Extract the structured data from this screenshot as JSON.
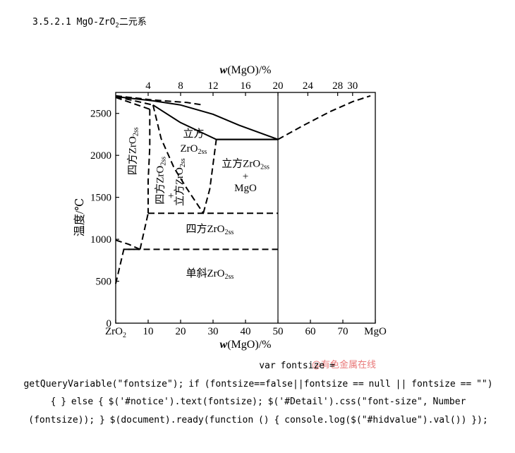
{
  "section": {
    "number": "3.5.2.1",
    "system_a": "MgO-ZrO",
    "system_sub": "2",
    "system_b": "二元系"
  },
  "chart_data": {
    "type": "phase-diagram",
    "title": "",
    "xlabel": "w(MgO)/%",
    "x2label": "w(MgO)/%",
    "ylabel": "温度/℃",
    "xlim": [
      0,
      80
    ],
    "ylim": [
      0,
      2750
    ],
    "x_ticks": [
      {
        "value": 0,
        "label": "ZrO2"
      },
      {
        "value": 10,
        "label": "10"
      },
      {
        "value": 20,
        "label": "20"
      },
      {
        "value": 30,
        "label": "30"
      },
      {
        "value": 40,
        "label": "40"
      },
      {
        "value": 50,
        "label": "50"
      },
      {
        "value": 60,
        "label": "60"
      },
      {
        "value": 70,
        "label": "70"
      },
      {
        "value": 80,
        "label": "MgO"
      }
    ],
    "x2_ticks": [
      {
        "value": 4,
        "label": "4"
      },
      {
        "value": 8,
        "label": "8"
      },
      {
        "value": 12,
        "label": "12"
      },
      {
        "value": 16,
        "label": "16"
      },
      {
        "value": 20,
        "label": "20"
      },
      {
        "value": 24,
        "label": "24"
      },
      {
        "value": 28,
        "label": "28"
      },
      {
        "value": 30,
        "label": "30"
      }
    ],
    "y_ticks": [
      0,
      500,
      1000,
      1500,
      2000,
      2500
    ],
    "grid": false,
    "boundaries": [
      {
        "name": "liquidus-solid",
        "style": "solid",
        "points": [
          [
            0,
            2700
          ],
          [
            11.5,
            2650
          ],
          [
            20,
            2600
          ],
          [
            30,
            2490
          ],
          [
            38,
            2360
          ],
          [
            50,
            2190
          ]
        ]
      },
      {
        "name": "cubic-ss-solvus-top",
        "style": "solid",
        "points": [
          [
            11.5,
            2600
          ],
          [
            20,
            2390
          ],
          [
            31,
            2190
          ],
          [
            50,
            2190
          ]
        ]
      },
      {
        "name": "eutectic-line",
        "style": "solid",
        "points": [
          [
            31,
            2190
          ],
          [
            50,
            2190
          ]
        ]
      },
      {
        "name": "mgo-liquidus",
        "style": "dashed",
        "points": [
          [
            50,
            2190
          ],
          [
            58,
            2360
          ],
          [
            66,
            2520
          ],
          [
            73,
            2640
          ],
          [
            78.5,
            2710
          ]
        ]
      },
      {
        "name": "zro2-liquidus-upper",
        "style": "dashed",
        "points": [
          [
            0,
            2710
          ],
          [
            11.5,
            2660
          ],
          [
            22,
            2630
          ],
          [
            27,
            2600
          ]
        ]
      },
      {
        "name": "zro2-solidus",
        "style": "dashed",
        "points": [
          [
            0,
            2700
          ],
          [
            11.5,
            2600
          ]
        ]
      },
      {
        "name": "tetragonal-cubic-lower",
        "style": "dashed",
        "points": [
          [
            0,
            2690
          ],
          [
            10.5,
            2550
          ]
        ]
      },
      {
        "name": "tetragonal-solvus",
        "style": "dashed",
        "points": [
          [
            10.5,
            2550
          ],
          [
            10.5,
            2100
          ],
          [
            10,
            1700
          ],
          [
            10,
            1310
          ]
        ]
      },
      {
        "name": "cubic-ss-left",
        "style": "dashed",
        "points": [
          [
            11.5,
            2600
          ],
          [
            14,
            2200
          ],
          [
            18,
            1850
          ],
          [
            22,
            1600
          ],
          [
            27,
            1310
          ]
        ]
      },
      {
        "name": "cubic-ss-right",
        "style": "dashed",
        "points": [
          [
            27,
            1310
          ],
          [
            29,
            1600
          ],
          [
            31,
            2190
          ]
        ]
      },
      {
        "name": "eutectoid-line",
        "style": "dashed",
        "points": [
          [
            10,
            1310
          ],
          [
            50,
            1310
          ]
        ]
      },
      {
        "name": "tetragonal-monoclinic-upper",
        "style": "dashed",
        "points": [
          [
            7.5,
            880
          ],
          [
            10,
            1310
          ]
        ]
      },
      {
        "name": "monoclinic-line",
        "style": "dashed",
        "points": [
          [
            2.5,
            880
          ],
          [
            50,
            880
          ]
        ]
      },
      {
        "name": "zro2-transition-upper",
        "style": "dashed",
        "points": [
          [
            0,
            990
          ],
          [
            4,
            940
          ],
          [
            7.5,
            880
          ]
        ]
      },
      {
        "name": "zro2-transition-lower",
        "style": "dashed",
        "points": [
          [
            0,
            470
          ],
          [
            2.5,
            880
          ],
          [
            7.5,
            880
          ]
        ]
      },
      {
        "name": "compound-50",
        "style": "solid",
        "points": [
          [
            50,
            0
          ],
          [
            50,
            2750
          ]
        ]
      }
    ],
    "annotations": [
      {
        "text": "四方ZrO2ss",
        "x": 5.5,
        "y": 2050,
        "rotate": -90
      },
      {
        "text": "立方",
        "x": 24,
        "y": 2250
      },
      {
        "text": "ZrO2ss",
        "x": 24,
        "y": 2070
      },
      {
        "text": "立方ZrO2ss",
        "x": 40,
        "y": 1890
      },
      {
        "text": "+",
        "x": 40,
        "y": 1740
      },
      {
        "text": "MgO",
        "x": 40,
        "y": 1600
      },
      {
        "text": "四方ZrO2ss",
        "x": 14,
        "y": 1700,
        "rotate": -90
      },
      {
        "text": "+",
        "x": 17,
        "y": 1510
      },
      {
        "text": "立方ZrO2ss",
        "x": 20,
        "y": 1680,
        "rotate": -90
      },
      {
        "text": "四方ZrO2ss",
        "x": 29,
        "y": 1110
      },
      {
        "text": "单斜ZrO2ss",
        "x": 29,
        "y": 580
      }
    ]
  },
  "watermark": "@有色金属在线",
  "code_lines": [
    "var fontsize =",
    "getQueryVariable(\"fontsize\"); if (fontsize==false||fontsize == null || fontsize == \"\")",
    "{ } else { $('#notice').text(fontsize); $('#Detail').css(\"font-size\", Number",
    "(fontsize)); } $(document).ready(function () { console.log($(\"#hidvalue\").val()) });"
  ]
}
